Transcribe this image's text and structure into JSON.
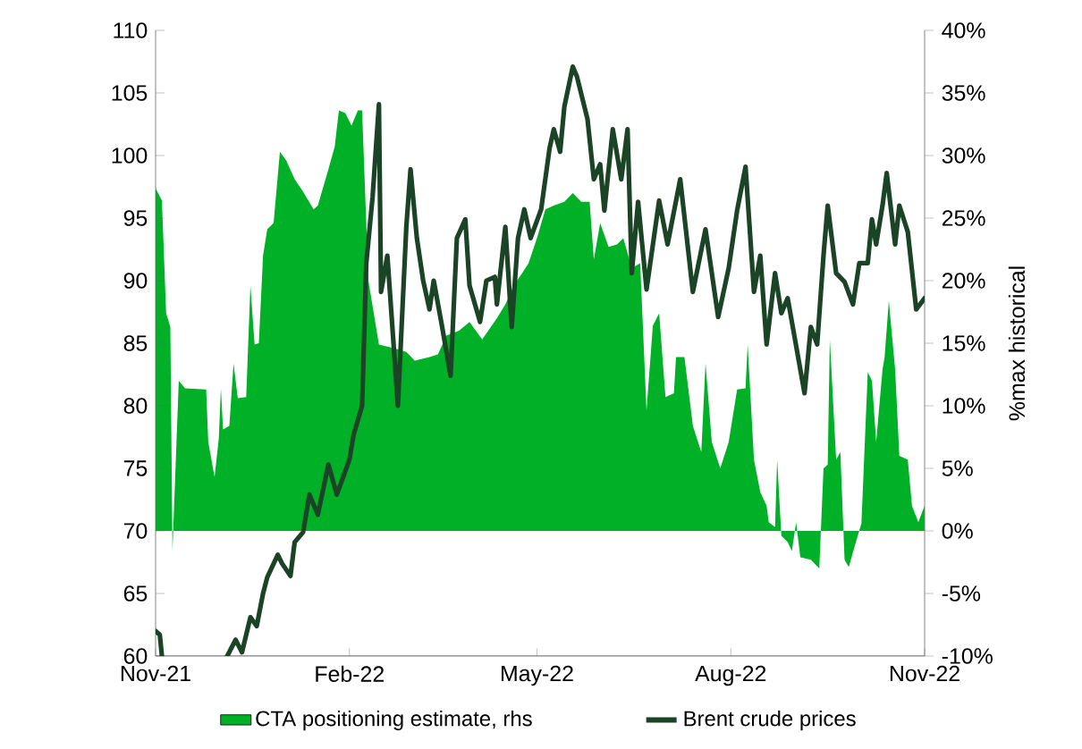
{
  "chart_data": {
    "type": "line",
    "xlim": [
      "2021-11-01",
      "2022-11-01"
    ],
    "xticks": [
      {
        "value": "2021-11-01",
        "label": "Nov-21"
      },
      {
        "value": "2022-02-01",
        "label": "Feb-22"
      },
      {
        "value": "2022-05-01",
        "label": "May-22"
      },
      {
        "value": "2022-08-01",
        "label": "Aug-22"
      },
      {
        "value": "2022-11-01",
        "label": "Nov-22"
      }
    ],
    "ylim": [
      60,
      110
    ],
    "yticks": [
      60,
      65,
      70,
      75,
      80,
      85,
      90,
      95,
      100,
      105,
      110
    ],
    "y2lim": [
      -10,
      40
    ],
    "y2ticks": [
      {
        "value": -10,
        "label": "-10%"
      },
      {
        "value": -5,
        "label": "-5%"
      },
      {
        "value": 0,
        "label": "0%"
      },
      {
        "value": 5,
        "label": "5%"
      },
      {
        "value": 10,
        "label": "10%"
      },
      {
        "value": 15,
        "label": "15%"
      },
      {
        "value": 20,
        "label": "20%"
      },
      {
        "value": 25,
        "label": "25%"
      },
      {
        "value": 30,
        "label": "30%"
      },
      {
        "value": 35,
        "label": "35%"
      },
      {
        "value": 40,
        "label": "40%"
      }
    ],
    "y2label": "%max historical",
    "legend": "bottom",
    "series": [
      {
        "name": "CTA positioning estimate, rhs",
        "type": "area",
        "axis": "y2",
        "color": "#00b026",
        "x": [
          "2021-11-01",
          "2021-11-04",
          "2021-11-06",
          "2021-11-08",
          "2021-11-09",
          "2021-11-12",
          "2021-11-15",
          "2021-11-25",
          "2021-11-26",
          "2021-11-29",
          "2021-12-01",
          "2021-12-02",
          "2021-12-03",
          "2021-12-06",
          "2021-12-08",
          "2021-12-10",
          "2021-12-14",
          "2021-12-16",
          "2021-12-18",
          "2021-12-20",
          "2021-12-22",
          "2021-12-24",
          "2021-12-27",
          "2021-12-30",
          "2022-01-02",
          "2022-01-06",
          "2022-01-10",
          "2022-01-15",
          "2022-01-17",
          "2022-01-22",
          "2022-01-25",
          "2022-01-27",
          "2022-01-30",
          "2022-02-02",
          "2022-02-05",
          "2022-02-07",
          "2022-02-10",
          "2022-02-15",
          "2022-02-22",
          "2022-02-28",
          "2022-03-04",
          "2022-03-11",
          "2022-03-15",
          "2022-03-19",
          "2022-03-25",
          "2022-03-30",
          "2022-04-05",
          "2022-04-12",
          "2022-04-16",
          "2022-04-20",
          "2022-04-24",
          "2022-04-27",
          "2022-05-01",
          "2022-05-05",
          "2022-05-09",
          "2022-05-14",
          "2022-05-18",
          "2022-05-22",
          "2022-05-26",
          "2022-05-28",
          "2022-05-31",
          "2022-06-04",
          "2022-06-08",
          "2022-06-11",
          "2022-06-15",
          "2022-06-19",
          "2022-06-22",
          "2022-06-25",
          "2022-06-28",
          "2022-07-01",
          "2022-07-05",
          "2022-07-06",
          "2022-07-10",
          "2022-07-14",
          "2022-07-18",
          "2022-07-20",
          "2022-07-23",
          "2022-07-27",
          "2022-07-31",
          "2022-08-04",
          "2022-08-08",
          "2022-08-09",
          "2022-08-12",
          "2022-08-15",
          "2022-08-18",
          "2022-08-19",
          "2022-08-22",
          "2022-08-23",
          "2022-08-25",
          "2022-08-28",
          "2022-08-30",
          "2022-09-01",
          "2022-09-03",
          "2022-09-08",
          "2022-09-12",
          "2022-09-14",
          "2022-09-16",
          "2022-09-17",
          "2022-09-20",
          "2022-09-22",
          "2022-09-24",
          "2022-09-26",
          "2022-09-29",
          "2022-10-02",
          "2022-10-05",
          "2022-10-07",
          "2022-10-09",
          "2022-10-12",
          "2022-10-13",
          "2022-10-15",
          "2022-10-18",
          "2022-10-20",
          "2022-10-24",
          "2022-10-26",
          "2022-10-29",
          "2022-11-01"
        ],
        "values": [
          27.4,
          26.4,
          17.4,
          16.3,
          -1.6,
          12,
          11.4,
          11.3,
          7.1,
          4.3,
          7.4,
          11.4,
          8.1,
          8.4,
          13.4,
          10.6,
          10.7,
          19.6,
          14.9,
          15,
          22,
          24.1,
          24.6,
          30.3,
          29.6,
          28.1,
          27.1,
          25.7,
          26,
          28.9,
          30.7,
          33.6,
          33.4,
          32.4,
          33.6,
          33.6,
          20,
          14.9,
          14.6,
          14.3,
          13.6,
          13.9,
          14.1,
          15.6,
          16,
          16.7,
          15.3,
          17,
          18.1,
          19.6,
          20.6,
          21.4,
          23.4,
          25.7,
          26,
          26.3,
          27,
          26.3,
          26.3,
          21.7,
          24.6,
          22.7,
          22.9,
          23.4,
          21,
          21.4,
          9.6,
          16.4,
          17.4,
          10.7,
          11,
          13.9,
          13.9,
          8.4,
          6.3,
          13.4,
          7.1,
          5,
          7.1,
          11.3,
          11.4,
          14.9,
          5.7,
          3.1,
          2,
          0.7,
          0.3,
          5.7,
          -0.4,
          -0.9,
          -1.6,
          0.7,
          -2.1,
          -2.3,
          -3,
          5,
          5.3,
          15.3,
          5.7,
          6.3,
          -2.3,
          -2.9,
          -1.1,
          0.6,
          12.7,
          12,
          7.1,
          12.9,
          13.9,
          18.4,
          12.9,
          6,
          5.7,
          2,
          0.7,
          2
        ]
      },
      {
        "name": "Brent crude prices",
        "color": "#1b4426",
        "x": [
          "2021-11-01",
          "2021-11-03",
          "2021-11-04",
          "2021-11-21",
          "2021-12-05",
          "2021-12-09",
          "2021-12-12",
          "2021-12-16",
          "2021-12-19",
          "2021-12-22",
          "2021-12-24",
          "2021-12-29",
          "2021-12-31",
          "2022-01-04",
          "2022-01-06",
          "2022-01-10",
          "2022-01-13",
          "2022-01-17",
          "2022-01-22",
          "2022-01-26",
          "2022-02-01",
          "2022-02-03",
          "2022-02-07",
          "2022-02-09",
          "2022-02-12",
          "2022-02-15",
          "2022-02-16",
          "2022-02-19",
          "2022-02-24",
          "2022-02-28",
          "2022-03-02",
          "2022-03-05",
          "2022-03-08",
          "2022-03-11",
          "2022-03-13",
          "2022-03-17",
          "2022-03-21",
          "2022-03-24",
          "2022-03-28",
          "2022-03-30",
          "2022-04-04",
          "2022-04-07",
          "2022-04-11",
          "2022-04-12",
          "2022-04-16",
          "2022-04-19",
          "2022-04-22",
          "2022-04-25",
          "2022-04-28",
          "2022-05-03",
          "2022-05-07",
          "2022-05-09",
          "2022-05-12",
          "2022-05-14",
          "2022-05-18",
          "2022-05-20",
          "2022-05-25",
          "2022-05-28",
          "2022-05-31",
          "2022-06-02",
          "2022-06-06",
          "2022-06-10",
          "2022-06-13",
          "2022-06-15",
          "2022-06-18",
          "2022-06-22",
          "2022-06-28",
          "2022-07-02",
          "2022-07-08",
          "2022-07-14",
          "2022-07-20",
          "2022-07-26",
          "2022-07-31",
          "2022-08-04",
          "2022-08-08",
          "2022-08-12",
          "2022-08-15",
          "2022-08-18",
          "2022-08-22",
          "2022-08-25",
          "2022-08-28",
          "2022-09-03",
          "2022-09-05",
          "2022-09-08",
          "2022-09-11",
          "2022-09-14",
          "2022-09-16",
          "2022-09-20",
          "2022-09-24",
          "2022-09-28",
          "2022-10-01",
          "2022-10-05",
          "2022-10-07",
          "2022-10-09",
          "2022-10-12",
          "2022-10-14",
          "2022-10-18",
          "2022-10-20",
          "2022-10-24",
          "2022-10-28",
          "2022-11-01"
        ],
        "values": [
          62,
          61.7,
          60,
          null,
          60,
          61.3,
          60.3,
          63.1,
          62.4,
          65,
          66.3,
          68.1,
          67.4,
          66.4,
          69.1,
          69.9,
          72.9,
          71.3,
          75.3,
          72.9,
          75.7,
          77.7,
          80,
          91.4,
          96.7,
          104.1,
          89.1,
          92,
          80,
          94.3,
          98.9,
          93.4,
          90,
          87.7,
          90,
          86.3,
          82.4,
          93.4,
          94.9,
          89.6,
          86.7,
          90,
          90.3,
          88.1,
          94.3,
          86.3,
          93.4,
          95.7,
          93.4,
          95.7,
          100.6,
          102.1,
          100.3,
          103.9,
          107.1,
          106.3,
          102.9,
          98.1,
          99.3,
          95.6,
          102.1,
          98.1,
          102.1,
          90.6,
          96.3,
          89.3,
          96.4,
          92.9,
          98.1,
          89.1,
          94.1,
          87.1,
          91,
          95.6,
          99.1,
          89.1,
          92,
          84.9,
          90.6,
          87.4,
          88.6,
          82.9,
          81,
          86.3,
          84.9,
          92,
          96,
          90.6,
          89.9,
          88.1,
          91.4,
          91.4,
          94.9,
          92.9,
          96,
          98.6,
          92.9,
          96,
          93.9,
          87.7,
          88.6
        ]
      }
    ]
  }
}
